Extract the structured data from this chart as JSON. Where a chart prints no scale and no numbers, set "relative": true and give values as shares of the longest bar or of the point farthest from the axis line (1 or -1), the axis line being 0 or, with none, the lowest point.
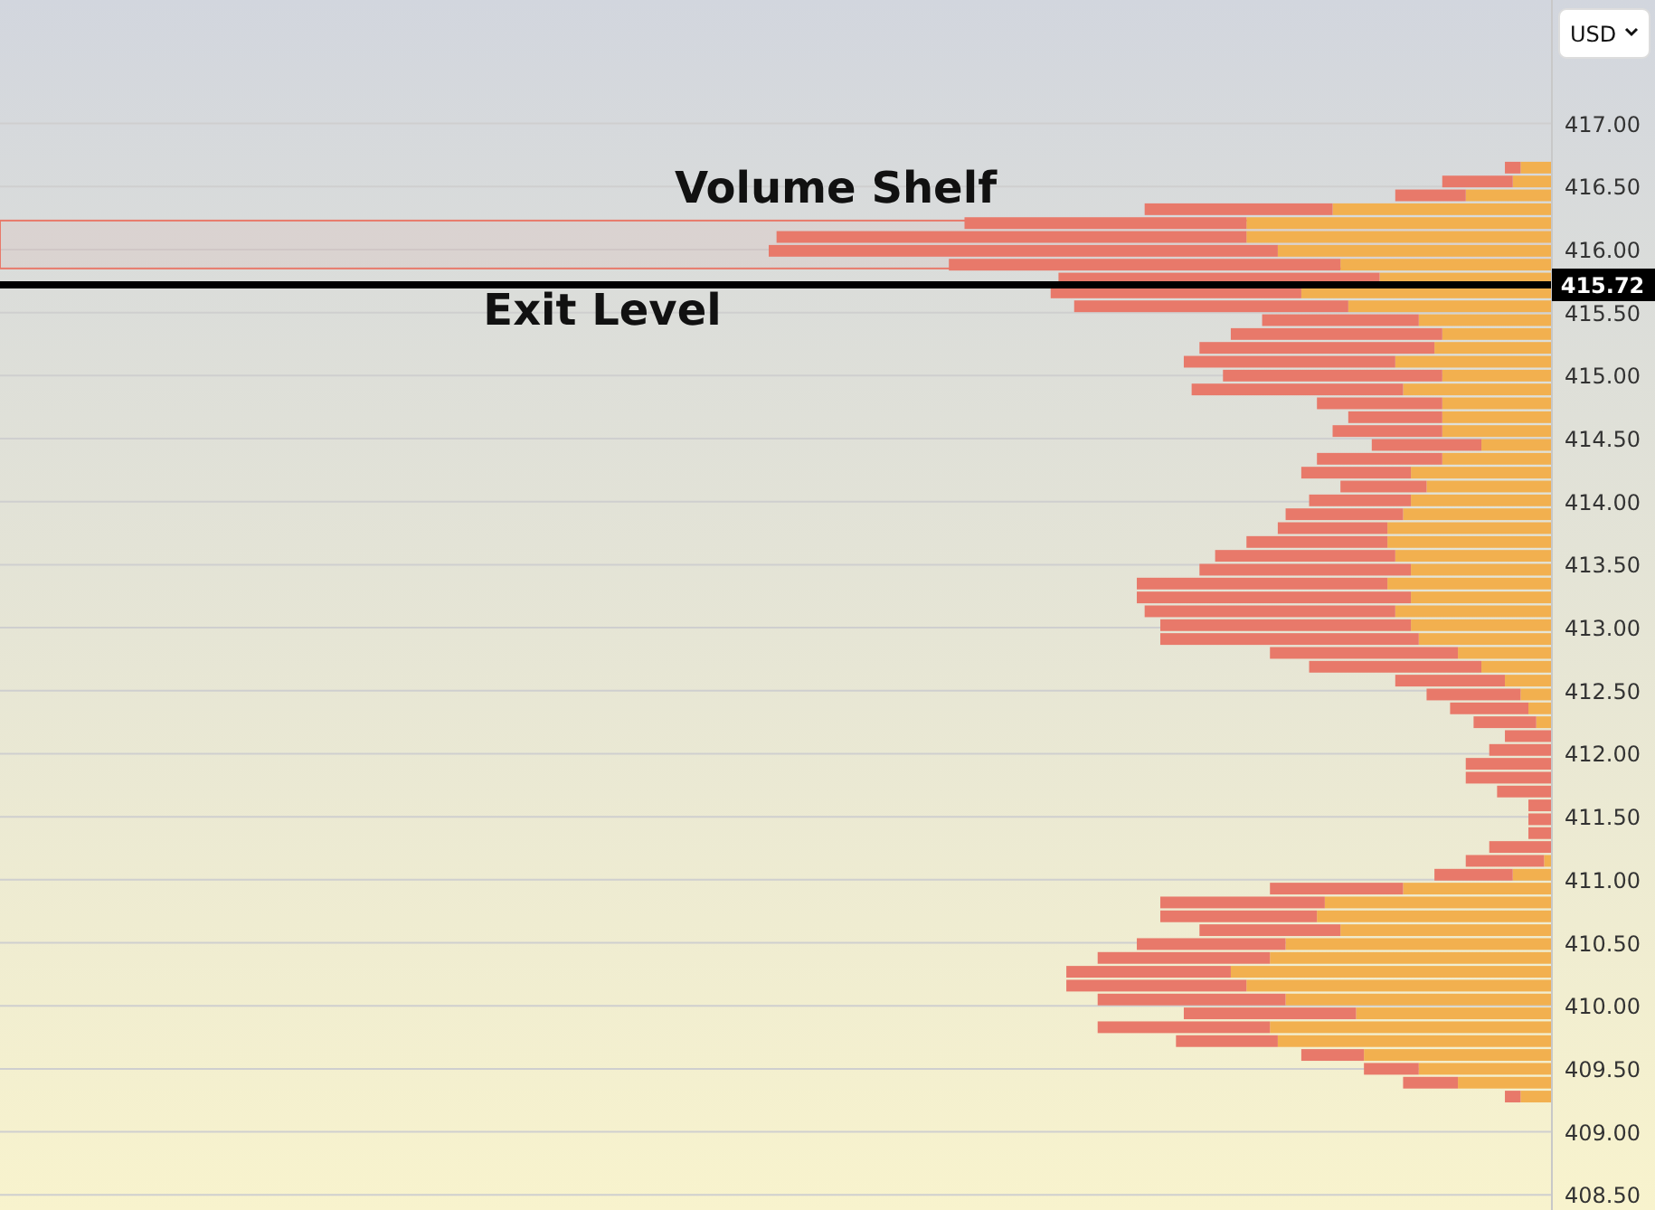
{
  "chart_data": {
    "type": "bar",
    "orientation": "horizontal",
    "stacked": true,
    "relative": true,
    "legend": false,
    "grid": "y",
    "x": [
      416.65,
      416.54,
      416.43,
      416.32,
      416.21,
      416.1,
      415.99,
      415.88,
      415.77,
      415.66,
      415.55,
      415.44,
      415.33,
      415.22,
      415.11,
      415.0,
      414.89,
      414.78,
      414.67,
      414.56,
      414.45,
      414.34,
      414.23,
      414.12,
      414.01,
      413.9,
      413.79,
      413.68,
      413.57,
      413.46,
      413.35,
      413.24,
      413.13,
      413.02,
      412.91,
      412.8,
      412.69,
      412.58,
      412.47,
      412.36,
      412.25,
      412.14,
      412.03,
      411.92,
      411.81,
      411.7,
      411.59,
      411.48,
      411.37,
      411.26,
      411.15,
      411.04,
      410.93,
      410.82,
      410.71,
      410.6,
      410.49,
      410.38,
      410.27,
      410.16,
      410.05,
      409.94,
      409.83,
      409.72,
      409.61,
      409.5,
      409.39,
      409.28
    ],
    "series": [
      {
        "color": "#f2b04f",
        "values": [
          0.04,
          0.05,
          0.11,
          0.28,
          0.39,
          0.39,
          0.35,
          0.27,
          0.22,
          0.32,
          0.26,
          0.17,
          0.14,
          0.15,
          0.2,
          0.14,
          0.19,
          0.14,
          0.14,
          0.14,
          0.09,
          0.14,
          0.18,
          0.16,
          0.18,
          0.19,
          0.21,
          0.21,
          0.2,
          0.18,
          0.21,
          0.18,
          0.2,
          0.18,
          0.17,
          0.12,
          0.09,
          0.06,
          0.04,
          0.03,
          0.02,
          0,
          0,
          0,
          0,
          0,
          0,
          0,
          0,
          0,
          0.01,
          0.05,
          0.19,
          0.29,
          0.3,
          0.27,
          0.34,
          0.36,
          0.41,
          0.39,
          0.34,
          0.25,
          0.36,
          0.35,
          0.24,
          0.17,
          0.12,
          0.04
        ]
      },
      {
        "color": "#e8796a",
        "values": [
          0.02,
          0.09,
          0.09,
          0.24,
          0.36,
          0.6,
          0.65,
          0.5,
          0.41,
          0.32,
          0.35,
          0.2,
          0.27,
          0.3,
          0.27,
          0.28,
          0.27,
          0.16,
          0.12,
          0.14,
          0.14,
          0.16,
          0.14,
          0.11,
          0.13,
          0.15,
          0.14,
          0.18,
          0.23,
          0.27,
          0.32,
          0.35,
          0.32,
          0.32,
          0.33,
          0.24,
          0.22,
          0.14,
          0.12,
          0.1,
          0.08,
          0.06,
          0.08,
          0.11,
          0.11,
          0.07,
          0.03,
          0.03,
          0.03,
          0.08,
          0.1,
          0.1,
          0.17,
          0.21,
          0.2,
          0.18,
          0.19,
          0.22,
          0.21,
          0.23,
          0.24,
          0.22,
          0.22,
          0.13,
          0.08,
          0.07,
          0.07,
          0.02
        ]
      }
    ],
    "ylim": [
      408.38,
      417.98
    ],
    "yticks": [
      {
        "value": 408.5,
        "label": "408.50"
      },
      {
        "value": 409,
        "label": "409.00"
      },
      {
        "value": 409.5,
        "label": "409.50"
      },
      {
        "value": 410,
        "label": "410.00"
      },
      {
        "value": 410.5,
        "label": "410.50"
      },
      {
        "value": 411,
        "label": "411.00"
      },
      {
        "value": 411.5,
        "label": "411.50"
      },
      {
        "value": 412,
        "label": "412.00"
      },
      {
        "value": 412.5,
        "label": "412.50"
      },
      {
        "value": 413,
        "label": "413.00"
      },
      {
        "value": 413.5,
        "label": "413.50"
      },
      {
        "value": 414,
        "label": "414.00"
      },
      {
        "value": 414.5,
        "label": "414.50"
      },
      {
        "value": 415,
        "label": "415.00"
      },
      {
        "value": 415.5,
        "label": "415.50"
      },
      {
        "value": 416,
        "label": "416.00"
      },
      {
        "value": 416.5,
        "label": "416.50"
      },
      {
        "value": 417,
        "label": "417.00"
      }
    ],
    "ref_lines": [
      {
        "axis": "y",
        "value": 415.72,
        "label": "Exit Level",
        "color": "#000000"
      }
    ],
    "bands": [
      {
        "axis": "y",
        "from": 415.85,
        "to": 416.23,
        "label": "Volume Shelf",
        "color": "#e8796a"
      }
    ],
    "annotations": [
      "USD",
      "415.72"
    ]
  }
}
